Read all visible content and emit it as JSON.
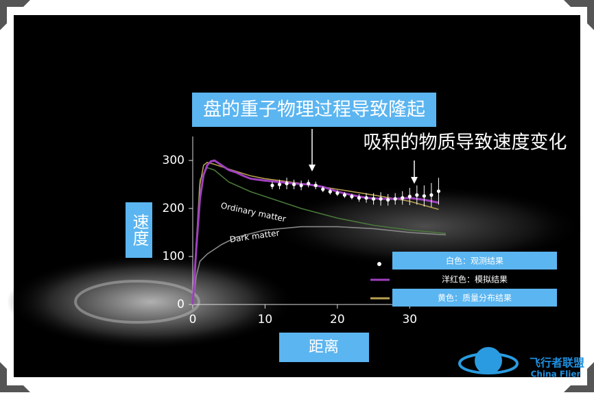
{
  "chart_data": {
    "type": "line",
    "annotations": [
      "盘的重子物理过程导致隆起",
      "吸积的物质导致速度变化"
    ],
    "ylabel": "速度",
    "xlabel": "距离",
    "xlim": [
      0,
      35
    ],
    "ylim": [
      0,
      350
    ],
    "xticks": [
      0,
      10,
      20,
      30
    ],
    "yticks": [
      0,
      100,
      200,
      300
    ],
    "series": [
      {
        "name": "白色：观测结果",
        "color": "#ffffff",
        "x": [
          11,
          12,
          13,
          14,
          15,
          16,
          17,
          18,
          19,
          20,
          21,
          22,
          23,
          24,
          25,
          26,
          27,
          28,
          29,
          30,
          31,
          32,
          33,
          34
        ],
        "values": [
          248,
          250,
          252,
          250,
          248,
          252,
          248,
          240,
          235,
          232,
          228,
          225,
          222,
          222,
          220,
          220,
          218,
          220,
          222,
          225,
          228,
          226,
          228,
          236
        ],
        "errors": [
          8,
          10,
          12,
          10,
          10,
          8,
          8,
          6,
          6,
          6,
          6,
          6,
          8,
          10,
          12,
          14,
          12,
          12,
          14,
          18,
          20,
          22,
          25,
          28
        ]
      },
      {
        "name": "洋红色：模拟结果",
        "color": "#a040c0",
        "x": [
          0,
          0.5,
          1,
          1.5,
          2,
          2.5,
          3,
          4,
          5,
          6,
          7,
          8,
          10,
          12,
          14,
          16,
          18,
          20,
          22,
          24,
          26,
          28,
          30,
          32,
          34
        ],
        "values": [
          0,
          120,
          220,
          270,
          290,
          298,
          300,
          290,
          280,
          275,
          268,
          262,
          258,
          255,
          252,
          250,
          245,
          235,
          228,
          222,
          220,
          220,
          222,
          218,
          212
        ]
      },
      {
        "name": "黄色：质量分布结果",
        "color": "#b8a050",
        "x": [
          0,
          1,
          1.5,
          2,
          3,
          5,
          8,
          10,
          15,
          20,
          25,
          30,
          34
        ],
        "values": [
          0,
          250,
          290,
          296,
          292,
          282,
          268,
          262,
          252,
          240,
          228,
          215,
          198
        ]
      },
      {
        "name": "Ordinary matter",
        "color": "#4a7a3a",
        "x": [
          0,
          1,
          2,
          3,
          5,
          8,
          10,
          15,
          20,
          25,
          30,
          35
        ],
        "values": [
          0,
          260,
          285,
          280,
          255,
          235,
          225,
          200,
          180,
          165,
          155,
          148
        ]
      },
      {
        "name": "Dark matter",
        "color": "#888888",
        "x": [
          0,
          0.5,
          1,
          2,
          4,
          6,
          10,
          15,
          20,
          25,
          30,
          35
        ],
        "values": [
          0,
          60,
          90,
          105,
          125,
          140,
          155,
          162,
          162,
          158,
          150,
          145
        ]
      }
    ]
  },
  "logo": {
    "name": "飞行者联盟",
    "name_en": "China Flier"
  }
}
